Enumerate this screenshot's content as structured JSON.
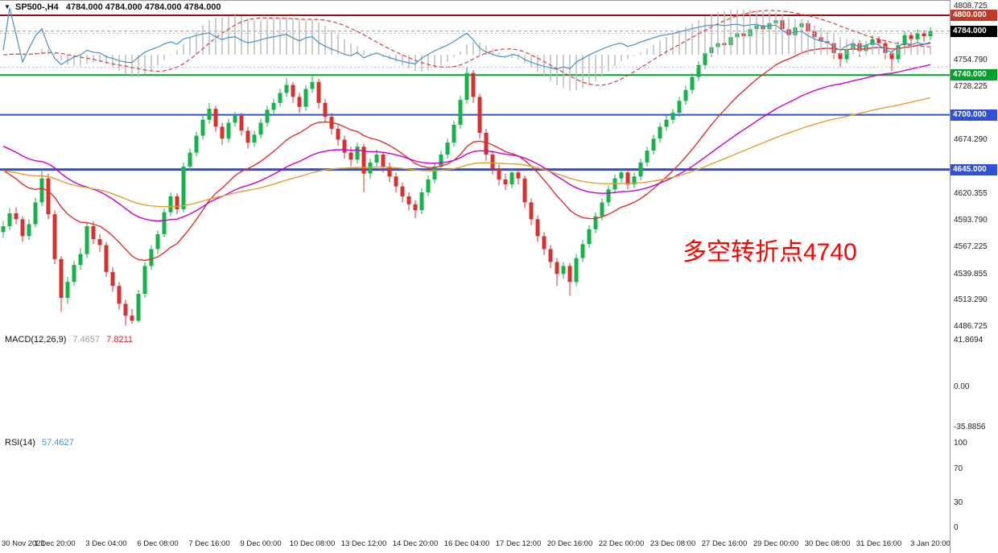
{
  "header": {
    "dropdown_icon": "▼",
    "symbol": "SP500-,H4",
    "ohlc_readout": "4784.000 4784.000 4784.000 4784.000"
  },
  "annotation": {
    "text": "多空转折点4740",
    "color": "#ff0000"
  },
  "axis": {
    "price_ticks": [
      4808.725,
      4754.79,
      4728.225,
      4674.29,
      4620.355,
      4593.79,
      4567.225,
      4539.855,
      4513.29,
      4486.725
    ],
    "badges": [
      {
        "label": "4800.000",
        "bg": "#c13a28",
        "price": 4800
      },
      {
        "label": "4784.000",
        "bg": "#000000",
        "price": 4784
      },
      {
        "label": "4740.000",
        "bg": "#00a22a",
        "price": 4740
      },
      {
        "label": "4700.000",
        "bg": "#3050d8",
        "price": 4700
      },
      {
        "label": "4645.000",
        "bg": "#3050d8",
        "price": 4645
      }
    ]
  },
  "chart_data": {
    "type": "candlestick",
    "symbol": "SP500-",
    "timeframe": "H4",
    "title": "SP500-,H4",
    "y_range": [
      4486.725,
      4808.725
    ],
    "current_price": 4784.0,
    "candles_per_label": 8,
    "x_labels": [
      "30 Nov 2021",
      "1 Dec 20:00",
      "3 Dec 04:00",
      "6 Dec 08:00",
      "7 Dec 16:00",
      "9 Dec 00:00",
      "10 Dec 08:00",
      "13 Dec 12:00",
      "14 Dec 20:00",
      "16 Dec 04:00",
      "17 Dec 12:00",
      "20 Dec 16:00",
      "22 Dec 00:00",
      "23 Dec 08:00",
      "27 Dec 16:00",
      "29 Dec 00:00",
      "30 Dec 08:00",
      "31 Dec 16:00",
      "3 Jan 20:00"
    ],
    "horizontal_lines": [
      {
        "price": 4800,
        "color": "#a01010",
        "width": 2
      },
      {
        "price": 4740,
        "color": "#00a22a",
        "width": 2
      },
      {
        "price": 4700,
        "color": "#2f4fd0",
        "width": 2
      },
      {
        "price": 4645,
        "color": "#2f4fd0",
        "width": 3
      }
    ],
    "moving_averages": [
      {
        "name": "fast-ma",
        "period": 20,
        "seed": 4650,
        "color": "#e03030"
      },
      {
        "name": "medium-ma",
        "period": 45,
        "seed": 4672,
        "color": "#cc00cc"
      },
      {
        "name": "slow-ma",
        "period": 90,
        "seed": 4645,
        "color": "#e0a030"
      }
    ],
    "style": {
      "up_color": "#18b24b",
      "down_color": "#d63030",
      "hist_color": "#b8b8b8",
      "signal_color": "#d04040",
      "rsi_color": "#4a90c2",
      "bid_line_color": "#999999"
    },
    "ohlc": [
      [
        4582,
        4593,
        4576,
        4588
      ],
      [
        4588,
        4606,
        4584,
        4601
      ],
      [
        4601,
        4607,
        4590,
        4595
      ],
      [
        4595,
        4598,
        4572,
        4578
      ],
      [
        4578,
        4595,
        4574,
        4590
      ],
      [
        4590,
        4617,
        4587,
        4612
      ],
      [
        4612,
        4645,
        4608,
        4636
      ],
      [
        4636,
        4641,
        4595,
        4600
      ],
      [
        4600,
        4604,
        4550,
        4555
      ],
      [
        4555,
        4558,
        4502,
        4516
      ],
      [
        4516,
        4537,
        4510,
        4532
      ],
      [
        4532,
        4553,
        4528,
        4549
      ],
      [
        4549,
        4566,
        4544,
        4560
      ],
      [
        4560,
        4592,
        4556,
        4588
      ],
      [
        4588,
        4593,
        4570,
        4575
      ],
      [
        4575,
        4580,
        4562,
        4569
      ],
      [
        4569,
        4572,
        4537,
        4542
      ],
      [
        4542,
        4547,
        4522,
        4528
      ],
      [
        4528,
        4532,
        4504,
        4510
      ],
      [
        4510,
        4514,
        4488,
        4498
      ],
      [
        4498,
        4505,
        4490,
        4493
      ],
      [
        4493,
        4524,
        4491,
        4520
      ],
      [
        4520,
        4552,
        4516,
        4548
      ],
      [
        4548,
        4569,
        4544,
        4565
      ],
      [
        4565,
        4584,
        4560,
        4580
      ],
      [
        4580,
        4606,
        4577,
        4602
      ],
      [
        4602,
        4622,
        4598,
        4618
      ],
      [
        4618,
        4621,
        4600,
        4605
      ],
      [
        4605,
        4652,
        4602,
        4648
      ],
      [
        4648,
        4666,
        4644,
        4662
      ],
      [
        4662,
        4683,
        4658,
        4679
      ],
      [
        4679,
        4699,
        4675,
        4695
      ],
      [
        4695,
        4712,
        4691,
        4706
      ],
      [
        4706,
        4709,
        4683,
        4688
      ],
      [
        4688,
        4692,
        4670,
        4676
      ],
      [
        4676,
        4696,
        4672,
        4692
      ],
      [
        4692,
        4703,
        4688,
        4699
      ],
      [
        4699,
        4702,
        4679,
        4684
      ],
      [
        4684,
        4688,
        4666,
        4672
      ],
      [
        4672,
        4684,
        4668,
        4680
      ],
      [
        4680,
        4696,
        4676,
        4692
      ],
      [
        4692,
        4709,
        4688,
        4705
      ],
      [
        4705,
        4716,
        4701,
        4712
      ],
      [
        4712,
        4726,
        4708,
        4722
      ],
      [
        4722,
        4737,
        4718,
        4730
      ],
      [
        4730,
        4733,
        4712,
        4718
      ],
      [
        4718,
        4722,
        4702,
        4708
      ],
      [
        4708,
        4730,
        4704,
        4726
      ],
      [
        4726,
        4740,
        4722,
        4733
      ],
      [
        4733,
        4736,
        4706,
        4712
      ],
      [
        4712,
        4716,
        4692,
        4698
      ],
      [
        4698,
        4702,
        4680,
        4686
      ],
      [
        4686,
        4690,
        4669,
        4675
      ],
      [
        4675,
        4679,
        4656,
        4662
      ],
      [
        4662,
        4668,
        4648,
        4655
      ],
      [
        4655,
        4672,
        4651,
        4668
      ],
      [
        4668,
        4671,
        4622,
        4641
      ],
      [
        4641,
        4656,
        4636,
        4652
      ],
      [
        4652,
        4665,
        4648,
        4660
      ],
      [
        4660,
        4663,
        4642,
        4648
      ],
      [
        4648,
        4652,
        4632,
        4638
      ],
      [
        4638,
        4642,
        4622,
        4628
      ],
      [
        4628,
        4632,
        4612,
        4618
      ],
      [
        4618,
        4622,
        4604,
        4610
      ],
      [
        4610,
        4614,
        4596,
        4604
      ],
      [
        4604,
        4626,
        4600,
        4622
      ],
      [
        4622,
        4639,
        4618,
        4635
      ],
      [
        4635,
        4652,
        4631,
        4648
      ],
      [
        4648,
        4664,
        4644,
        4660
      ],
      [
        4660,
        4676,
        4656,
        4672
      ],
      [
        4672,
        4694,
        4668,
        4690
      ],
      [
        4690,
        4719,
        4686,
        4715
      ],
      [
        4715,
        4748,
        4711,
        4742
      ],
      [
        4742,
        4745,
        4712,
        4718
      ],
      [
        4718,
        4721,
        4676,
        4682
      ],
      [
        4682,
        4686,
        4654,
        4660
      ],
      [
        4660,
        4664,
        4640,
        4646
      ],
      [
        4646,
        4650,
        4629,
        4635
      ],
      [
        4635,
        4641,
        4624,
        4630
      ],
      [
        4630,
        4646,
        4626,
        4642
      ],
      [
        4642,
        4645,
        4630,
        4636
      ],
      [
        4636,
        4639,
        4606,
        4612
      ],
      [
        4612,
        4616,
        4589,
        4595
      ],
      [
        4595,
        4599,
        4572,
        4578
      ],
      [
        4578,
        4582,
        4559,
        4565
      ],
      [
        4565,
        4569,
        4546,
        4552
      ],
      [
        4552,
        4556,
        4528,
        4540
      ],
      [
        4540,
        4552,
        4535,
        4548
      ],
      [
        4548,
        4551,
        4518,
        4532
      ],
      [
        4532,
        4560,
        4528,
        4556
      ],
      [
        4556,
        4574,
        4552,
        4570
      ],
      [
        4570,
        4589,
        4566,
        4585
      ],
      [
        4585,
        4602,
        4581,
        4598
      ],
      [
        4598,
        4616,
        4594,
        4612
      ],
      [
        4612,
        4629,
        4608,
        4625
      ],
      [
        4625,
        4640,
        4621,
        4636
      ],
      [
        4636,
        4646,
        4632,
        4642
      ],
      [
        4642,
        4645,
        4625,
        4630
      ],
      [
        4630,
        4642,
        4626,
        4638
      ],
      [
        4638,
        4656,
        4634,
        4652
      ],
      [
        4652,
        4668,
        4648,
        4664
      ],
      [
        4664,
        4680,
        4660,
        4676
      ],
      [
        4676,
        4692,
        4672,
        4688
      ],
      [
        4688,
        4699,
        4684,
        4695
      ],
      [
        4695,
        4706,
        4691,
        4702
      ],
      [
        4702,
        4718,
        4698,
        4714
      ],
      [
        4714,
        4729,
        4710,
        4725
      ],
      [
        4725,
        4742,
        4721,
        4738
      ],
      [
        4738,
        4754,
        4734,
        4750
      ],
      [
        4750,
        4766,
        4746,
        4762
      ],
      [
        4762,
        4772,
        4758,
        4768
      ],
      [
        4768,
        4776,
        4764,
        4772
      ],
      [
        4772,
        4775,
        4762,
        4770
      ],
      [
        4770,
        4782,
        4766,
        4778
      ],
      [
        4778,
        4786,
        4774,
        4782
      ],
      [
        4782,
        4785,
        4771,
        4779
      ],
      [
        4779,
        4790,
        4775,
        4786
      ],
      [
        4786,
        4794,
        4782,
        4790
      ],
      [
        4790,
        4793,
        4778,
        4786
      ],
      [
        4786,
        4796,
        4782,
        4792
      ],
      [
        4792,
        4802,
        4788,
        4795
      ],
      [
        4795,
        4798,
        4780,
        4786
      ],
      [
        4786,
        4789,
        4772,
        4780
      ],
      [
        4780,
        4792,
        4776,
        4788
      ],
      [
        4788,
        4796,
        4784,
        4792
      ],
      [
        4792,
        4795,
        4778,
        4784
      ],
      [
        4784,
        4787,
        4772,
        4778
      ],
      [
        4778,
        4781,
        4768,
        4774
      ],
      [
        4774,
        4777,
        4766,
        4772
      ],
      [
        4772,
        4775,
        4756,
        4762
      ],
      [
        4762,
        4765,
        4748,
        4756
      ],
      [
        4756,
        4770,
        4752,
        4766
      ],
      [
        4766,
        4776,
        4762,
        4772
      ],
      [
        4772,
        4775,
        4758,
        4764
      ],
      [
        4764,
        4774,
        4760,
        4770
      ],
      [
        4770,
        4780,
        4766,
        4776
      ],
      [
        4776,
        4779,
        4766,
        4772
      ],
      [
        4772,
        4775,
        4756,
        4762
      ],
      [
        4762,
        4765,
        4744,
        4756
      ],
      [
        4756,
        4774,
        4752,
        4770
      ],
      [
        4770,
        4784,
        4766,
        4780
      ],
      [
        4780,
        4783,
        4770,
        4776
      ],
      [
        4776,
        4786,
        4772,
        4782
      ],
      [
        4782,
        4785,
        4773,
        4779
      ],
      [
        4779,
        4788,
        4775,
        4784
      ]
    ],
    "macd": {
      "label": "MACD(12,26,9)",
      "fast": 12,
      "slow": 26,
      "signal": 9,
      "value_main": "7.4657",
      "value_signal": "7.8211",
      "axis_ticks": [
        {
          "value": 41.8694,
          "label": "41.8694"
        },
        {
          "value": 0,
          "label": "0.00"
        },
        {
          "value": -35.8856,
          "label": "-35.8856"
        }
      ]
    },
    "rsi": {
      "label": "RSI(14)",
      "period": 14,
      "value": "57.4627",
      "levels": [
        70,
        30
      ],
      "axis_ticks": [
        {
          "value": 100,
          "label": "100"
        },
        {
          "value": 70,
          "label": "70"
        },
        {
          "value": 30,
          "label": "30"
        },
        {
          "value": 0,
          "label": "0"
        }
      ]
    }
  }
}
